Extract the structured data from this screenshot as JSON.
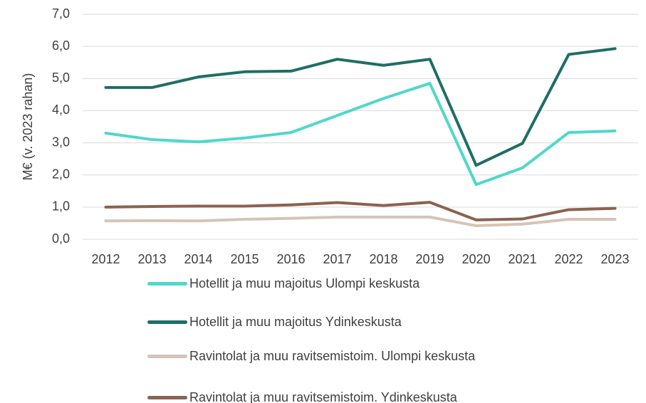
{
  "chart_data": {
    "type": "line",
    "y_label": "M€ (v. 2023 rahan)",
    "categories": [
      "2012",
      "2013",
      "2014",
      "2015",
      "2016",
      "2017",
      "2018",
      "2019",
      "2020",
      "2021",
      "2022",
      "2023"
    ],
    "series": [
      {
        "name": "Hotellit ja muu majoitus Ulompi keskusta",
        "color": "#4fd8cb",
        "values": [
          3.3,
          3.1,
          3.03,
          3.15,
          3.32,
          3.85,
          4.38,
          4.85,
          1.7,
          2.22,
          3.32,
          3.37
        ]
      },
      {
        "name": "Hotellit ja muu majoitus Ydinkeskusta",
        "color": "#1f6e66",
        "values": [
          4.72,
          4.72,
          5.05,
          5.21,
          5.23,
          5.6,
          5.41,
          5.6,
          2.3,
          2.98,
          5.75,
          5.93
        ]
      },
      {
        "name": "Ravintolat ja muu ravitsemistoim. Ulompi keskusta",
        "color": "#d5c4b6",
        "values": [
          0.57,
          0.58,
          0.57,
          0.62,
          0.65,
          0.69,
          0.69,
          0.69,
          0.42,
          0.47,
          0.62,
          0.62
        ]
      },
      {
        "name": "Ravintolat ja muu ravitsemistoim. Ydinkeskusta",
        "color": "#8a6350",
        "values": [
          1.0,
          1.02,
          1.03,
          1.03,
          1.07,
          1.14,
          1.05,
          1.15,
          0.6,
          0.63,
          0.92,
          0.96
        ]
      }
    ],
    "ylim": [
      0,
      7
    ],
    "yticks": [
      {
        "value": 0,
        "label": "0,0"
      },
      {
        "value": 1,
        "label": "1,0"
      },
      {
        "value": 2,
        "label": "2,0"
      },
      {
        "value": 3,
        "label": "3,0"
      },
      {
        "value": 4,
        "label": "4,0"
      },
      {
        "value": 5,
        "label": "5,0"
      },
      {
        "value": 6,
        "label": "6,0"
      },
      {
        "value": 7,
        "label": "7,0"
      }
    ],
    "grid": true
  }
}
